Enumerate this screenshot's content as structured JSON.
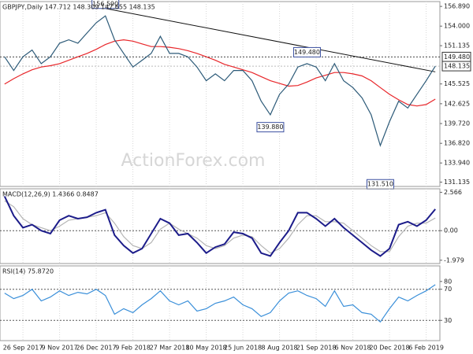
{
  "watermark": "ActionForex.com",
  "chart_data": [
    {
      "type": "line",
      "title": "GBPJPY,Daily  147.712 148.309 147.655 148.135",
      "series": [
        {
          "color": "#2c5a78",
          "values": [
            149.5,
            147.5,
            149.5,
            150.5,
            148.5,
            149.5,
            151.5,
            152,
            151.5,
            153,
            154.5,
            155.5,
            152,
            150,
            148,
            149,
            150,
            152.5,
            150,
            150,
            149.5,
            148,
            146,
            147,
            146,
            147.5,
            147.5,
            146,
            143,
            141,
            144,
            145.5,
            148,
            148.5,
            148,
            146,
            148.5,
            146,
            145,
            143.5,
            141,
            136.5,
            140,
            143,
            142,
            144,
            146,
            148.135
          ]
        },
        {
          "color": "#e8262a",
          "values": [
            145.5,
            146.3,
            147,
            147.6,
            148,
            148.2,
            148.5,
            149,
            149.5,
            150,
            150.6,
            151.3,
            151.8,
            152,
            151.8,
            151.4,
            151,
            151,
            150.9,
            150.7,
            150.4,
            150,
            149.5,
            149,
            148.4,
            148,
            147.6,
            147.2,
            146.6,
            146,
            145.6,
            145.2,
            145.3,
            145.8,
            146.4,
            146.8,
            147.2,
            147.2,
            147,
            146.7,
            146,
            145,
            144,
            143.2,
            142.5,
            142.3,
            142.5,
            143.3
          ]
        }
      ],
      "trendline": {
        "values": [
          156.59,
          147.3
        ],
        "at": [
          11,
          47
        ]
      },
      "annotations": [
        {
          "label": "156.590",
          "value": 156.59,
          "at": 11
        },
        {
          "label": "149.480",
          "value": 149.48,
          "at": 33
        },
        {
          "label": "139.880",
          "value": 139.88,
          "at": 29
        },
        {
          "label": "131.510",
          "value": 131.51,
          "at": 41
        }
      ],
      "ylim": [
        130.5,
        157.6
      ],
      "yticks": [
        {
          "value": 156.89,
          "label": "156.890"
        },
        {
          "value": 154.0,
          "label": "154.000"
        },
        {
          "value": 151.135,
          "label": "151.135"
        },
        {
          "value": 145.525,
          "label": "145.525"
        },
        {
          "value": 142.625,
          "label": "142.625"
        },
        {
          "value": 139.72,
          "label": "139.720"
        },
        {
          "value": 136.82,
          "label": "136.820"
        },
        {
          "value": 133.94,
          "label": "133.940"
        },
        {
          "value": 131.135,
          "label": "131.135"
        }
      ],
      "boxed_yticks": [
        {
          "value": 149.48,
          "label": "149.480"
        },
        {
          "value": 148.135,
          "label": "148.135"
        }
      ]
    },
    {
      "type": "line",
      "title": "MACD(12,26,9) 1.4366 0.8487",
      "series": [
        {
          "color": "#1c1c8a",
          "values": [
            2.3,
            1.0,
            0.2,
            0.4,
            0.0,
            -0.2,
            0.7,
            1.0,
            0.8,
            0.9,
            1.2,
            1.4,
            -0.3,
            -1.0,
            -1.5,
            -1.2,
            -0.2,
            0.8,
            0.5,
            -0.3,
            -0.2,
            -0.8,
            -1.5,
            -1.1,
            -0.9,
            -0.1,
            -0.2,
            -0.5,
            -1.5,
            -1.7,
            -0.8,
            0.0,
            1.2,
            1.2,
            0.8,
            0.3,
            0.8,
            0.2,
            -0.3,
            -0.8,
            -1.3,
            -1.7,
            -1.2,
            0.4,
            0.6,
            0.3,
            0.7,
            1.4366
          ]
        },
        {
          "color": "#b4b4b4",
          "values": [
            2.0,
            1.6,
            0.8,
            0.4,
            0.2,
            0.0,
            0.3,
            0.7,
            0.8,
            0.9,
            1.0,
            1.2,
            0.5,
            -0.4,
            -1.0,
            -1.2,
            -0.8,
            0.1,
            0.5,
            0.1,
            -0.2,
            -0.5,
            -1.0,
            -1.2,
            -1.0,
            -0.5,
            -0.3,
            -0.4,
            -1.0,
            -1.5,
            -1.2,
            -0.5,
            0.4,
            1.0,
            1.0,
            0.6,
            0.6,
            0.5,
            0.0,
            -0.5,
            -1.0,
            -1.4,
            -1.4,
            -0.4,
            0.3,
            0.5,
            0.5,
            0.8487
          ]
        }
      ],
      "ylim": [
        -2.2,
        2.8
      ],
      "yticks": [
        2.566,
        {
          "value": 0,
          "label": "0.00"
        },
        -1.979
      ],
      "hlines": [
        0
      ]
    },
    {
      "type": "line",
      "title": "RSI(14) 75.8720",
      "categories": [
        null,
        null,
        "26 Sep 2017",
        null,
        null,
        null,
        "9 Nov 2017",
        null,
        null,
        null,
        "26 Dec 2017",
        null,
        null,
        null,
        "9 Feb 2018",
        null,
        null,
        null,
        "27 Mar 2018",
        null,
        null,
        null,
        "10 May 2018",
        null,
        null,
        null,
        "25 Jun 2018",
        null,
        null,
        null,
        "8 Aug 2018",
        null,
        null,
        null,
        "21 Sep 2018",
        null,
        null,
        null,
        "6 Nov 2018",
        null,
        null,
        null,
        "20 Dec 2018",
        null,
        null,
        null,
        "6 Feb 2019",
        null
      ],
      "series": [
        {
          "color": "#3a8fd9",
          "values": [
            65,
            58,
            62,
            70,
            55,
            60,
            68,
            62,
            66,
            64,
            70,
            62,
            38,
            45,
            40,
            50,
            58,
            68,
            55,
            50,
            55,
            42,
            45,
            52,
            55,
            60,
            50,
            45,
            35,
            40,
            55,
            65,
            68,
            62,
            58,
            48,
            68,
            48,
            50,
            40,
            38,
            28,
            45,
            60,
            55,
            62,
            68,
            75.872
          ]
        }
      ],
      "ylim": [
        4,
        100
      ],
      "yticks": [
        80,
        70,
        30
      ],
      "hlines": [
        70,
        30
      ]
    }
  ]
}
